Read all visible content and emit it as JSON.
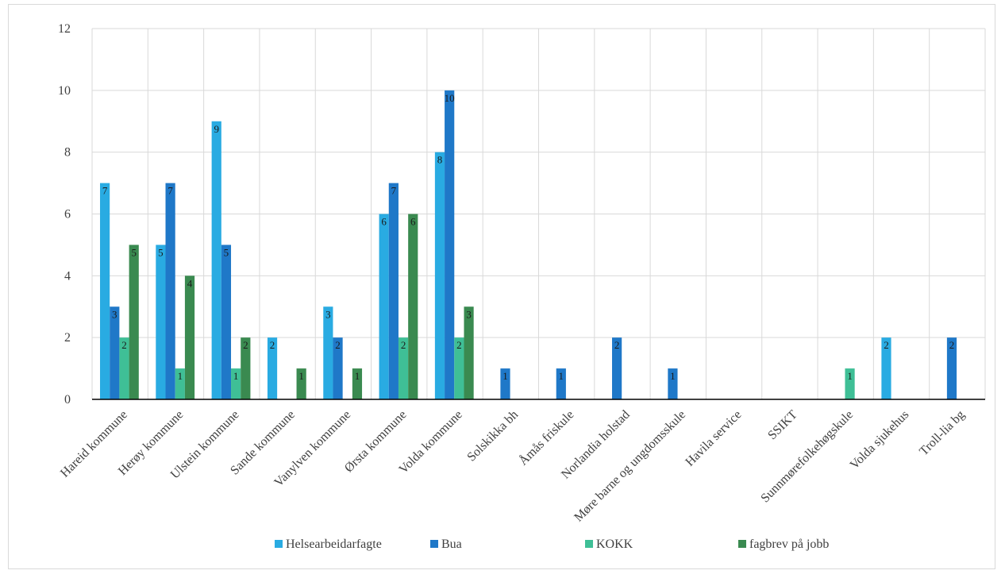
{
  "chart_data": {
    "type": "bar",
    "title": "",
    "xlabel": "",
    "ylabel": "",
    "ylim": [
      0,
      12
    ],
    "yticks": [
      "0",
      "2",
      "4",
      "6",
      "8",
      "10",
      "12"
    ],
    "grid": "vertical and horizontal",
    "legend_position": "bottom",
    "categories": [
      "Hareid kommune",
      "Herøy kommune",
      "Ulstein kommune",
      "Sande kommune",
      "Vanylven kommune",
      "Ørsta kommune",
      "Volda kommune",
      "Solskikka bh",
      "Åmås friskule",
      "Norlandia holstad",
      "Møre barne og ungdomsskule",
      "Havila service",
      "SSIKT",
      "Sunnmørefolkehøgskule",
      "Volda sjukehus",
      "Troll-lia bg"
    ],
    "series": [
      {
        "name": "Helsearbeidarfagte",
        "color": "#29abe2",
        "values": [
          7,
          5,
          9,
          2,
          3,
          6,
          8,
          0,
          0,
          0,
          0,
          0,
          0,
          0,
          2,
          0
        ]
      },
      {
        "name": "Bua",
        "color": "#1f78c8",
        "values": [
          3,
          7,
          5,
          0,
          2,
          7,
          10,
          1,
          1,
          2,
          1,
          0,
          0,
          0,
          0,
          2
        ]
      },
      {
        "name": "KOKK",
        "color": "#3fbf96",
        "values": [
          2,
          1,
          1,
          0,
          0,
          2,
          2,
          0,
          0,
          0,
          0,
          0,
          0,
          1,
          0,
          0
        ]
      },
      {
        "name": "fagbrev på jobb",
        "color": "#3a8a50",
        "values": [
          5,
          4,
          2,
          1,
          1,
          6,
          3,
          0,
          0,
          0,
          0,
          0,
          0,
          0,
          0,
          0
        ]
      }
    ]
  }
}
